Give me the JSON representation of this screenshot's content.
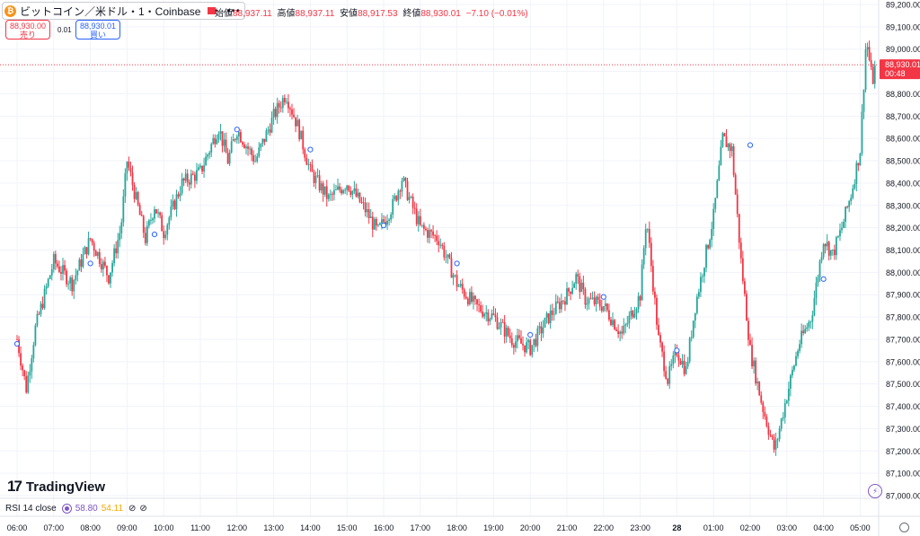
{
  "header": {
    "symbol_title": "ビットコイン／米ドル・1・Coinbase",
    "icon_label": "₿",
    "more_label": "•••",
    "ohlc": [
      {
        "label": "始値",
        "value": "88,937.11"
      },
      {
        "label": "高値",
        "value": "88,937.11"
      },
      {
        "label": "安値",
        "value": "88,917.53"
      },
      {
        "label": "終値",
        "value": "88,930.01"
      }
    ],
    "change": "−7.10 (−0.01%)"
  },
  "trade": {
    "sell_price": "88,930.00",
    "sell_label": "売り",
    "spread": "0.01",
    "buy_price": "88,930.01",
    "buy_label": "買い"
  },
  "logo": {
    "icon": "17",
    "text": "TradingView"
  },
  "indicator": {
    "name": "RSI 14 close",
    "value1": "58.80",
    "value2": "54.11"
  },
  "last_price_label": {
    "price": "88,930.01",
    "countdown": "00:48"
  },
  "colors": {
    "up": "#26a69a",
    "down": "#f23645",
    "price_line": "#f23645",
    "axis_text": "#131722",
    "accent": "#2962ff"
  },
  "chart_data": {
    "type": "candlestick",
    "title": "",
    "ylim": [
      87000,
      89200
    ],
    "x_tick_labels": [
      "06:00",
      "07:00",
      "08:00",
      "09:00",
      "10:00",
      "11:00",
      "12:00",
      "13:00",
      "14:00",
      "15:00",
      "16:00",
      "17:00",
      "18:00",
      "19:00",
      "20:00",
      "21:00",
      "22:00",
      "23:00",
      "28",
      "01:00",
      "02:00",
      "03:00",
      "04:00",
      "05:00"
    ],
    "y_tick_labels": [
      "89,200.00",
      "89,100.00",
      "89,000.00",
      "88,900.00",
      "88,800.00",
      "88,700.00",
      "88,600.00",
      "88,500.00",
      "88,400.00",
      "88,300.00",
      "88,200.00",
      "88,100.00",
      "88,000.00",
      "87,900.00",
      "87,800.00",
      "87,700.00",
      "87,600.00",
      "87,500.00",
      "87,400.00",
      "87,300.00",
      "87,200.00",
      "87,100.00",
      "87,000.00"
    ],
    "y_tick_values": [
      89200,
      89100,
      89000,
      88900,
      88800,
      88700,
      88600,
      88500,
      88400,
      88300,
      88200,
      88100,
      88000,
      87900,
      87800,
      87700,
      87600,
      87500,
      87400,
      87300,
      87200,
      87100,
      87000
    ],
    "price_path": [
      {
        "t": "06:00",
        "price": 87700
      },
      {
        "t": "06:15",
        "price": 87480
      },
      {
        "t": "06:30",
        "price": 87750
      },
      {
        "t": "07:00",
        "price": 88050
      },
      {
        "t": "07:30",
        "price": 87950
      },
      {
        "t": "08:00",
        "price": 88150
      },
      {
        "t": "08:30",
        "price": 87980
      },
      {
        "t": "08:50",
        "price": 88200
      },
      {
        "t": "09:00",
        "price": 88500
      },
      {
        "t": "09:30",
        "price": 88150
      },
      {
        "t": "09:45",
        "price": 88300
      },
      {
        "t": "10:00",
        "price": 88180
      },
      {
        "t": "10:30",
        "price": 88400
      },
      {
        "t": "11:00",
        "price": 88450
      },
      {
        "t": "11:30",
        "price": 88650
      },
      {
        "t": "11:45",
        "price": 88500
      },
      {
        "t": "12:00",
        "price": 88640
      },
      {
        "t": "12:30",
        "price": 88500
      },
      {
        "t": "13:00",
        "price": 88700
      },
      {
        "t": "13:20",
        "price": 88800
      },
      {
        "t": "13:40",
        "price": 88650
      },
      {
        "t": "14:00",
        "price": 88450
      },
      {
        "t": "14:30",
        "price": 88330
      },
      {
        "t": "15:00",
        "price": 88400
      },
      {
        "t": "15:30",
        "price": 88280
      },
      {
        "t": "15:50",
        "price": 88180
      },
      {
        "t": "16:15",
        "price": 88300
      },
      {
        "t": "16:30",
        "price": 88420
      },
      {
        "t": "17:00",
        "price": 88200
      },
      {
        "t": "17:30",
        "price": 88150
      },
      {
        "t": "18:00",
        "price": 87950
      },
      {
        "t": "18:30",
        "price": 87850
      },
      {
        "t": "19:00",
        "price": 87800
      },
      {
        "t": "19:30",
        "price": 87700
      },
      {
        "t": "20:00",
        "price": 87660
      },
      {
        "t": "20:30",
        "price": 87800
      },
      {
        "t": "21:00",
        "price": 87900
      },
      {
        "t": "21:15",
        "price": 87980
      },
      {
        "t": "21:30",
        "price": 87880
      },
      {
        "t": "22:00",
        "price": 87850
      },
      {
        "t": "22:30",
        "price": 87720
      },
      {
        "t": "23:00",
        "price": 87900
      },
      {
        "t": "23:10",
        "price": 88250
      },
      {
        "t": "23:30",
        "price": 87700
      },
      {
        "t": "23:45",
        "price": 87520
      },
      {
        "t": "00:00",
        "price": 87650
      },
      {
        "t": "00:15",
        "price": 87560
      },
      {
        "t": "00:30",
        "price": 87850
      },
      {
        "t": "01:00",
        "price": 88250
      },
      {
        "t": "01:15",
        "price": 88600
      },
      {
        "t": "01:30",
        "price": 88550
      },
      {
        "t": "01:45",
        "price": 88050
      },
      {
        "t": "02:00",
        "price": 87650
      },
      {
        "t": "02:20",
        "price": 87400
      },
      {
        "t": "02:40",
        "price": 87200
      },
      {
        "t": "03:00",
        "price": 87450
      },
      {
        "t": "03:20",
        "price": 87680
      },
      {
        "t": "03:40",
        "price": 87800
      },
      {
        "t": "04:00",
        "price": 88150
      },
      {
        "t": "04:15",
        "price": 88080
      },
      {
        "t": "04:30",
        "price": 88200
      },
      {
        "t": "04:45",
        "price": 88350
      },
      {
        "t": "05:00",
        "price": 88550
      },
      {
        "t": "05:10",
        "price": 89050
      },
      {
        "t": "05:20",
        "price": 88850
      },
      {
        "t": "05:25",
        "price": 88930
      }
    ],
    "highs_lows": {
      "high": 89100,
      "low": 87180
    },
    "last_price": 88930.01,
    "marker_points": [
      {
        "t": "06:00",
        "price": 87680
      },
      {
        "t": "08:00",
        "price": 88040
      },
      {
        "t": "09:45",
        "price": 88170
      },
      {
        "t": "12:00",
        "price": 88640
      },
      {
        "t": "14:00",
        "price": 88550
      },
      {
        "t": "16:00",
        "price": 88210
      },
      {
        "t": "18:00",
        "price": 88040
      },
      {
        "t": "20:00",
        "price": 87720
      },
      {
        "t": "22:00",
        "price": 87890
      },
      {
        "t": "00:00",
        "price": 87650
      },
      {
        "t": "02:00",
        "price": 88570
      },
      {
        "t": "04:00",
        "price": 87970
      }
    ],
    "grid": true
  }
}
